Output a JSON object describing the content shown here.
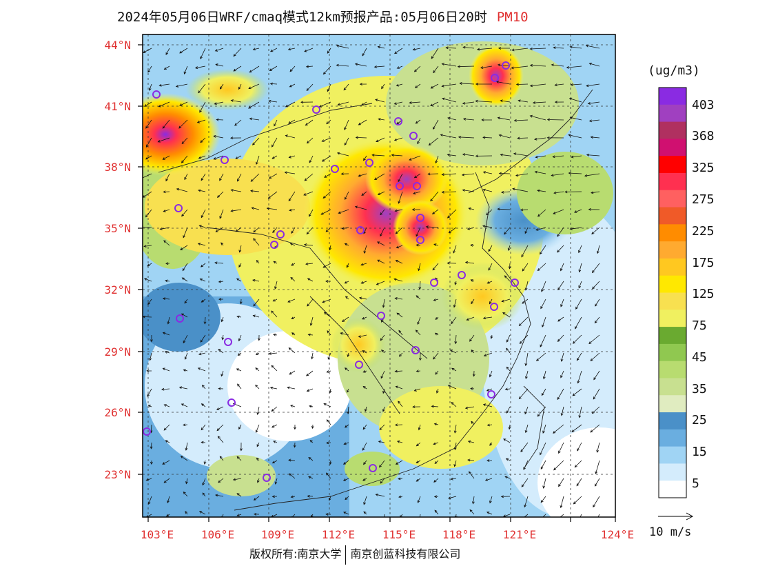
{
  "title": {
    "text": "2024年05月06日WRF/cmaq模式12km预报产品:05月06日20时",
    "variable": "PM10"
  },
  "axes": {
    "lat_labels": [
      "44°N",
      "41°N",
      "38°N",
      "35°N",
      "32°N",
      "29°N",
      "26°N",
      "23°N"
    ],
    "lon_labels": [
      "103°E",
      "106°E",
      "109°E",
      "112°E",
      "115°E",
      "118°E",
      "121°E",
      "124°E"
    ]
  },
  "colorbar": {
    "unit": "(ug/m3)",
    "labels": [
      "403",
      "368",
      "325",
      "275",
      "225",
      "175",
      "125",
      "75",
      "45",
      "35",
      "25",
      "15",
      "5"
    ],
    "colors": [
      "#8a2be2",
      "#a040c0",
      "#b03060",
      "#d01070",
      "#ff0000",
      "#ff3050",
      "#ff6060",
      "#f05a28",
      "#ff8c00",
      "#ffaa30",
      "#ffc820",
      "#ffe800",
      "#f8e050",
      "#f0f060",
      "#6aaa30",
      "#90c850",
      "#b8dc70",
      "#c8e090",
      "#e0ecc0",
      "#4a90c8",
      "#6aaee0",
      "#a0d4f4",
      "#d4ecfc",
      "#ffffff"
    ]
  },
  "wind_reference": {
    "label": "10 m/s"
  },
  "footer": {
    "left": "版权所有:南京大学",
    "right": "南京创蓝科技有限公司"
  },
  "legend_colors": {
    "station_marker": "#8a2be2",
    "label_red": "#e03030"
  }
}
